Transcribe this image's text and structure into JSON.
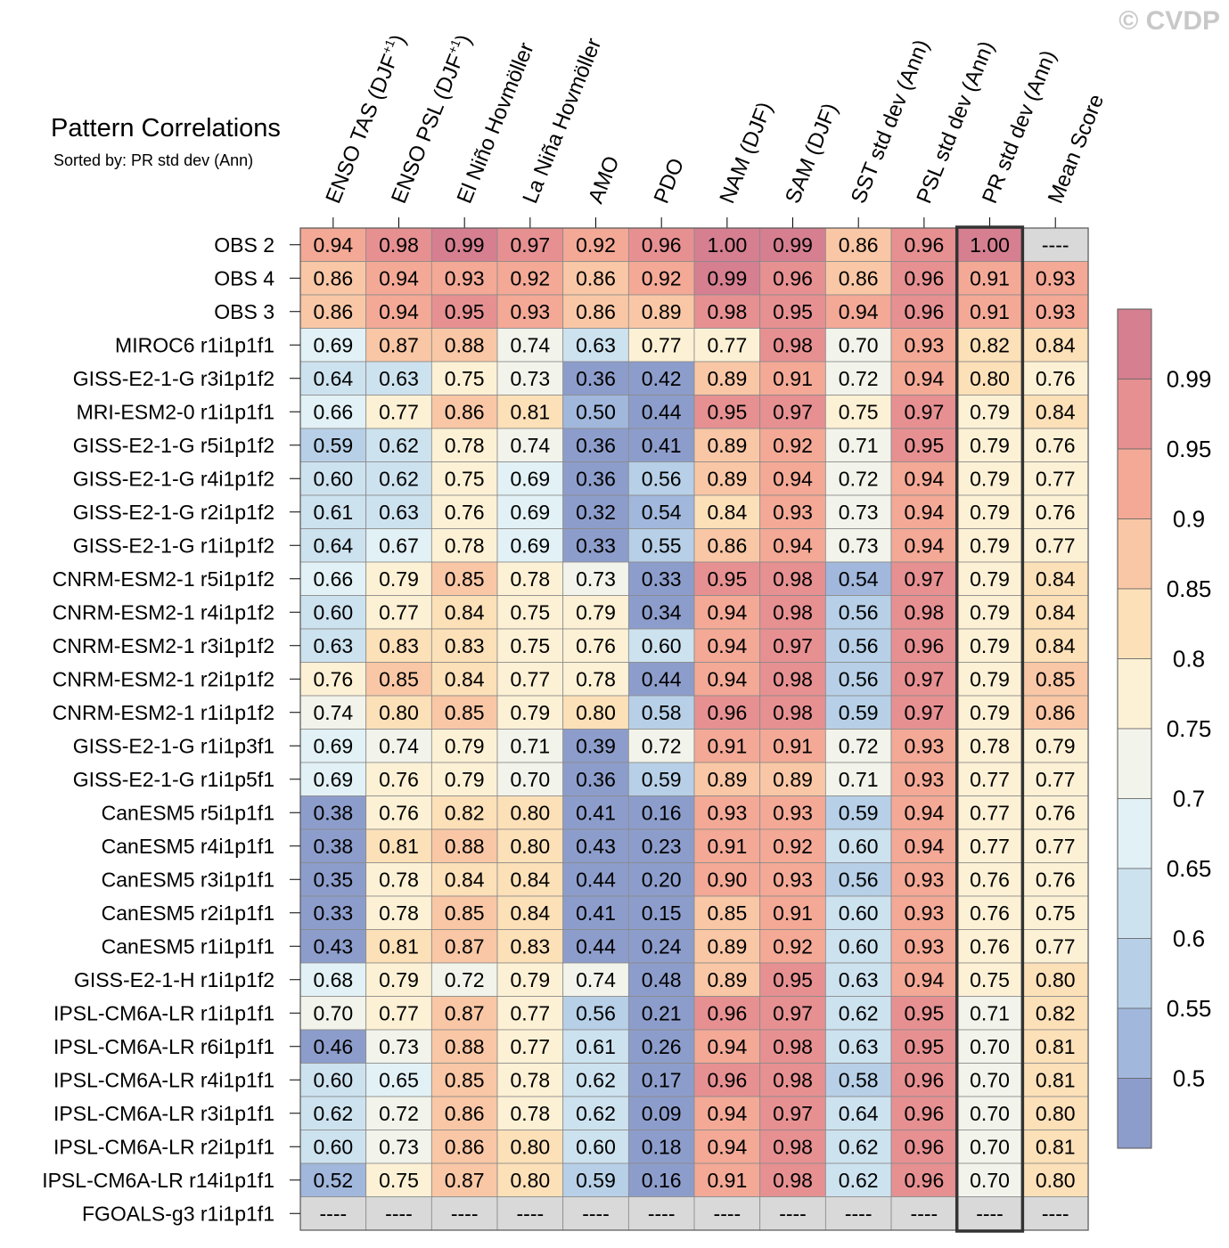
{
  "copyright": "© CVDP",
  "chart_data": {
    "type": "heatmap",
    "title": "Pattern Correlations",
    "subtitle": "Sorted by: PR std dev (Ann)",
    "highlight_column": "PR std dev (Ann)",
    "missing_value": "----",
    "columns": [
      {
        "base": "ENSO TAS (DJF",
        "sup": "+1",
        "tail": ")"
      },
      {
        "base": "ENSO PSL (DJF",
        "sup": "+1",
        "tail": ")"
      },
      {
        "base": "El Niño Hovmöller",
        "sup": "",
        "tail": ""
      },
      {
        "base": "La Niña Hovmöller",
        "sup": "",
        "tail": ""
      },
      {
        "base": "AMO",
        "sup": "",
        "tail": ""
      },
      {
        "base": "PDO",
        "sup": "",
        "tail": ""
      },
      {
        "base": "NAM (DJF)",
        "sup": "",
        "tail": ""
      },
      {
        "base": "SAM (DJF)",
        "sup": "",
        "tail": ""
      },
      {
        "base": "SST std dev (Ann)",
        "sup": "",
        "tail": ""
      },
      {
        "base": "PSL std dev (Ann)",
        "sup": "",
        "tail": ""
      },
      {
        "base": "PR std dev (Ann)",
        "sup": "",
        "tail": ""
      },
      {
        "base": "Mean Score",
        "sup": "",
        "tail": ""
      }
    ],
    "rows": [
      "OBS 2",
      "OBS 4",
      "OBS 3",
      "MIROC6 r1i1p1f1",
      "GISS-E2-1-G r3i1p1f2",
      "MRI-ESM2-0 r1i1p1f1",
      "GISS-E2-1-G r5i1p1f2",
      "GISS-E2-1-G r4i1p1f2",
      "GISS-E2-1-G r2i1p1f2",
      "GISS-E2-1-G r1i1p1f2",
      "CNRM-ESM2-1 r5i1p1f2",
      "CNRM-ESM2-1 r4i1p1f2",
      "CNRM-ESM2-1 r3i1p1f2",
      "CNRM-ESM2-1 r2i1p1f2",
      "CNRM-ESM2-1 r1i1p1f2",
      "GISS-E2-1-G r1i1p3f1",
      "GISS-E2-1-G r1i1p5f1",
      "CanESM5 r5i1p1f1",
      "CanESM5 r4i1p1f1",
      "CanESM5 r3i1p1f1",
      "CanESM5 r2i1p1f1",
      "CanESM5 r1i1p1f1",
      "GISS-E2-1-H r1i1p1f2",
      "IPSL-CM6A-LR r1i1p1f1",
      "IPSL-CM6A-LR r6i1p1f1",
      "IPSL-CM6A-LR r4i1p1f1",
      "IPSL-CM6A-LR r3i1p1f1",
      "IPSL-CM6A-LR r2i1p1f1",
      "IPSL-CM6A-LR r14i1p1f1",
      "FGOALS-g3 r1i1p1f1"
    ],
    "values": [
      [
        "0.94",
        "0.98",
        "0.99",
        "0.97",
        "0.92",
        "0.96",
        "1.00",
        "0.99",
        "0.86",
        "0.96",
        "1.00",
        "----"
      ],
      [
        "0.86",
        "0.94",
        "0.93",
        "0.92",
        "0.86",
        "0.92",
        "0.99",
        "0.96",
        "0.86",
        "0.96",
        "0.91",
        "0.93"
      ],
      [
        "0.86",
        "0.94",
        "0.95",
        "0.93",
        "0.86",
        "0.89",
        "0.98",
        "0.95",
        "0.94",
        "0.96",
        "0.91",
        "0.93"
      ],
      [
        "0.69",
        "0.87",
        "0.88",
        "0.74",
        "0.63",
        "0.77",
        "0.77",
        "0.98",
        "0.70",
        "0.93",
        "0.82",
        "0.84"
      ],
      [
        "0.64",
        "0.63",
        "0.75",
        "0.73",
        "0.36",
        "0.42",
        "0.89",
        "0.91",
        "0.72",
        "0.94",
        "0.80",
        "0.76"
      ],
      [
        "0.66",
        "0.77",
        "0.86",
        "0.81",
        "0.50",
        "0.44",
        "0.95",
        "0.97",
        "0.75",
        "0.97",
        "0.79",
        "0.84"
      ],
      [
        "0.59",
        "0.62",
        "0.78",
        "0.74",
        "0.36",
        "0.41",
        "0.89",
        "0.92",
        "0.71",
        "0.95",
        "0.79",
        "0.76"
      ],
      [
        "0.60",
        "0.62",
        "0.75",
        "0.69",
        "0.36",
        "0.56",
        "0.89",
        "0.94",
        "0.72",
        "0.94",
        "0.79",
        "0.77"
      ],
      [
        "0.61",
        "0.63",
        "0.76",
        "0.69",
        "0.32",
        "0.54",
        "0.84",
        "0.93",
        "0.73",
        "0.94",
        "0.79",
        "0.76"
      ],
      [
        "0.64",
        "0.67",
        "0.78",
        "0.69",
        "0.33",
        "0.55",
        "0.86",
        "0.94",
        "0.73",
        "0.94",
        "0.79",
        "0.77"
      ],
      [
        "0.66",
        "0.79",
        "0.85",
        "0.78",
        "0.73",
        "0.33",
        "0.95",
        "0.98",
        "0.54",
        "0.97",
        "0.79",
        "0.84"
      ],
      [
        "0.60",
        "0.77",
        "0.84",
        "0.75",
        "0.79",
        "0.34",
        "0.94",
        "0.98",
        "0.56",
        "0.98",
        "0.79",
        "0.84"
      ],
      [
        "0.63",
        "0.83",
        "0.83",
        "0.75",
        "0.76",
        "0.60",
        "0.94",
        "0.97",
        "0.56",
        "0.96",
        "0.79",
        "0.84"
      ],
      [
        "0.76",
        "0.85",
        "0.84",
        "0.77",
        "0.78",
        "0.44",
        "0.94",
        "0.98",
        "0.56",
        "0.97",
        "0.79",
        "0.85"
      ],
      [
        "0.74",
        "0.80",
        "0.85",
        "0.79",
        "0.80",
        "0.58",
        "0.96",
        "0.98",
        "0.59",
        "0.97",
        "0.79",
        "0.86"
      ],
      [
        "0.69",
        "0.74",
        "0.79",
        "0.71",
        "0.39",
        "0.72",
        "0.91",
        "0.91",
        "0.72",
        "0.93",
        "0.78",
        "0.79"
      ],
      [
        "0.69",
        "0.76",
        "0.79",
        "0.70",
        "0.36",
        "0.59",
        "0.89",
        "0.89",
        "0.71",
        "0.93",
        "0.77",
        "0.77"
      ],
      [
        "0.38",
        "0.76",
        "0.82",
        "0.80",
        "0.41",
        "0.16",
        "0.93",
        "0.93",
        "0.59",
        "0.94",
        "0.77",
        "0.76"
      ],
      [
        "0.38",
        "0.81",
        "0.88",
        "0.80",
        "0.43",
        "0.23",
        "0.91",
        "0.92",
        "0.60",
        "0.94",
        "0.77",
        "0.77"
      ],
      [
        "0.35",
        "0.78",
        "0.84",
        "0.84",
        "0.44",
        "0.20",
        "0.90",
        "0.93",
        "0.56",
        "0.93",
        "0.76",
        "0.76"
      ],
      [
        "0.33",
        "0.78",
        "0.85",
        "0.84",
        "0.41",
        "0.15",
        "0.85",
        "0.91",
        "0.60",
        "0.93",
        "0.76",
        "0.75"
      ],
      [
        "0.43",
        "0.81",
        "0.87",
        "0.83",
        "0.44",
        "0.24",
        "0.89",
        "0.92",
        "0.60",
        "0.93",
        "0.76",
        "0.77"
      ],
      [
        "0.68",
        "0.79",
        "0.72",
        "0.79",
        "0.74",
        "0.48",
        "0.89",
        "0.95",
        "0.63",
        "0.94",
        "0.75",
        "0.80"
      ],
      [
        "0.70",
        "0.77",
        "0.87",
        "0.77",
        "0.56",
        "0.21",
        "0.96",
        "0.97",
        "0.62",
        "0.95",
        "0.71",
        "0.82"
      ],
      [
        "0.46",
        "0.73",
        "0.88",
        "0.77",
        "0.61",
        "0.26",
        "0.94",
        "0.98",
        "0.63",
        "0.95",
        "0.70",
        "0.81"
      ],
      [
        "0.60",
        "0.65",
        "0.85",
        "0.78",
        "0.62",
        "0.17",
        "0.96",
        "0.98",
        "0.58",
        "0.96",
        "0.70",
        "0.81"
      ],
      [
        "0.62",
        "0.72",
        "0.86",
        "0.78",
        "0.62",
        "0.09",
        "0.94",
        "0.97",
        "0.64",
        "0.96",
        "0.70",
        "0.80"
      ],
      [
        "0.60",
        "0.73",
        "0.86",
        "0.80",
        "0.60",
        "0.18",
        "0.94",
        "0.98",
        "0.62",
        "0.96",
        "0.70",
        "0.81"
      ],
      [
        "0.52",
        "0.75",
        "0.87",
        "0.80",
        "0.59",
        "0.16",
        "0.91",
        "0.98",
        "0.62",
        "0.96",
        "0.70",
        "0.80"
      ],
      [
        "----",
        "----",
        "----",
        "----",
        "----",
        "----",
        "----",
        "----",
        "----",
        "----",
        "----",
        "----"
      ]
    ],
    "colorbar": {
      "labels": [
        "0.99",
        "0.95",
        "0.9",
        "0.85",
        "0.8",
        "0.75",
        "0.7",
        "0.65",
        "0.6",
        "0.55",
        "0.5"
      ],
      "bins_high_to_low": [
        {
          "min": 0.99,
          "color": "#d57f91"
        },
        {
          "min": 0.95,
          "color": "#e69092"
        },
        {
          "min": 0.9,
          "color": "#f3a996"
        },
        {
          "min": 0.85,
          "color": "#f9c7a5"
        },
        {
          "min": 0.8,
          "color": "#fce0b8"
        },
        {
          "min": 0.75,
          "color": "#fdf1d5"
        },
        {
          "min": 0.7,
          "color": "#f2f3ea"
        },
        {
          "min": 0.65,
          "color": "#e2f1f5"
        },
        {
          "min": 0.6,
          "color": "#cde2ef"
        },
        {
          "min": 0.55,
          "color": "#b7d0e7"
        },
        {
          "min": 0.5,
          "color": "#a1b7dc"
        },
        {
          "min": -1.0,
          "color": "#8d9dcb"
        }
      ],
      "missing_color": "#d9d9d9"
    }
  }
}
